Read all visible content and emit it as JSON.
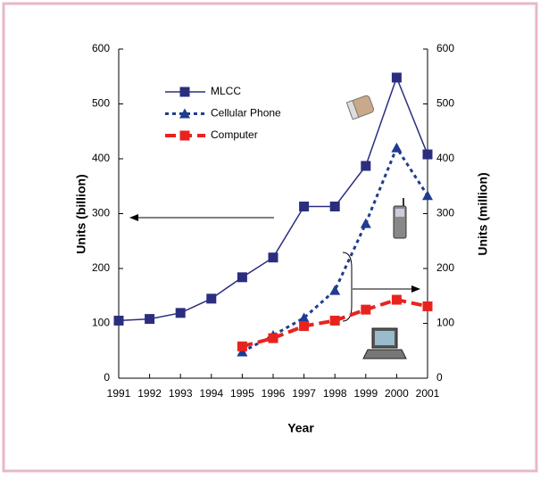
{
  "chart_data": {
    "type": "line",
    "x_label": "Year",
    "y_label": "Units (billion)",
    "y2_label": "Units (million)",
    "x": [
      1991,
      1992,
      1993,
      1994,
      1995,
      1996,
      1997,
      1998,
      1999,
      2000,
      2001
    ],
    "xlim": [
      1991,
      2001
    ],
    "xticks": [
      1991,
      1992,
      1993,
      1994,
      1995,
      1996,
      1997,
      1998,
      1999,
      2000,
      2001
    ],
    "ylim": [
      0,
      600
    ],
    "yticks": [
      0,
      100,
      200,
      300,
      400,
      500,
      600
    ],
    "y2lim": [
      0,
      600
    ],
    "y2ticks": [
      0,
      100,
      200,
      300,
      400,
      500,
      600
    ],
    "series": [
      {
        "name": "MLCC",
        "color": "#2b2e7f",
        "marker": "square",
        "dash": false,
        "values": [
          105,
          108,
          119,
          145,
          184,
          220,
          313,
          313,
          387,
          548,
          408
        ]
      },
      {
        "name": "Cellular Phone",
        "color": "#1f3c8f",
        "marker": "triangle",
        "dash": true,
        "axis": "y2",
        "values": [
          null,
          null,
          null,
          null,
          48,
          78,
          110,
          160,
          282,
          420,
          333
        ]
      },
      {
        "name": "Computer",
        "color": "#e8231f",
        "marker": "square",
        "dash": true,
        "axis": "y2",
        "values": [
          null,
          null,
          null,
          null,
          58,
          73,
          95,
          105,
          125,
          143,
          131
        ]
      }
    ]
  }
}
